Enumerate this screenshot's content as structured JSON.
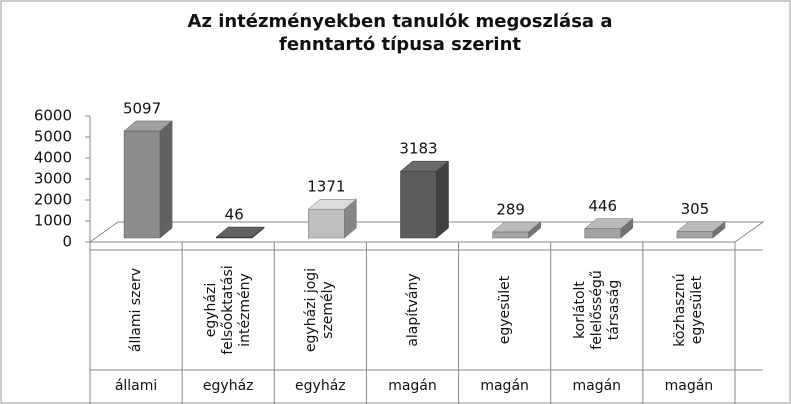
{
  "chart_data": {
    "type": "bar3d",
    "title": "Az intézményekben tanulók megoszlása a fenntartó típusa szerint",
    "categories": [
      "állami szerv",
      "egyházi felsőoktatási intézmény",
      "egyházi jogi személy",
      "alapítvány",
      "egyesület",
      "korlátolt felelősségű társaság",
      "közhasznú egyesület"
    ],
    "groups": [
      "állami",
      "egyház",
      "egyház",
      "magán",
      "magán",
      "magán",
      "magán"
    ],
    "values": [
      5097,
      46,
      1371,
      3183,
      289,
      446,
      305
    ],
    "colors": [
      "#8c8c8c",
      "#555555",
      "#bfbfbf",
      "#5c5c5c",
      "#a3a3a3",
      "#a3a3a3",
      "#a3a3a3"
    ],
    "ylim": [
      0,
      6000
    ],
    "yticks": [
      0,
      1000,
      2000,
      3000,
      4000,
      5000,
      6000
    ]
  }
}
